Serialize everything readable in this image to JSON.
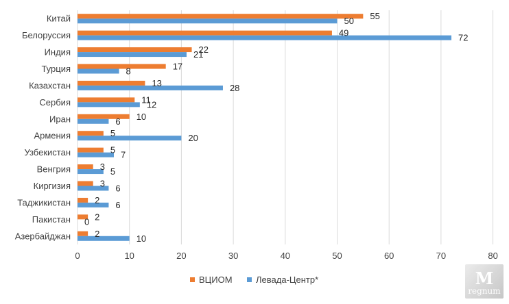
{
  "chart_data": {
    "type": "bar",
    "orientation": "horizontal",
    "categories": [
      "Китай",
      "Белоруссия",
      "Индия",
      "Турция",
      "Казахстан",
      "Сербия",
      "Иран",
      "Армения",
      "Узбекистан",
      "Венгрия",
      "Киргизия",
      "Таджикистан",
      "Пакистан",
      "Азербайджан"
    ],
    "series": [
      {
        "name": "ВЦИОМ",
        "color": "#ed7d31",
        "values": [
          55,
          49,
          22,
          17,
          13,
          11,
          10,
          5,
          5,
          3,
          3,
          2,
          2,
          2
        ]
      },
      {
        "name": "Левада-Центр*",
        "color": "#5b9bd5",
        "values": [
          50,
          72,
          21,
          8,
          28,
          12,
          6,
          20,
          7,
          5,
          6,
          6,
          0,
          10
        ]
      }
    ],
    "xlim": [
      0,
      80
    ],
    "xticks": [
      0,
      10,
      20,
      30,
      40,
      50,
      60,
      70,
      80
    ],
    "grid": "vertical",
    "legend_position": "bottom"
  },
  "watermark": {
    "mark": "M",
    "text": "regnum"
  }
}
